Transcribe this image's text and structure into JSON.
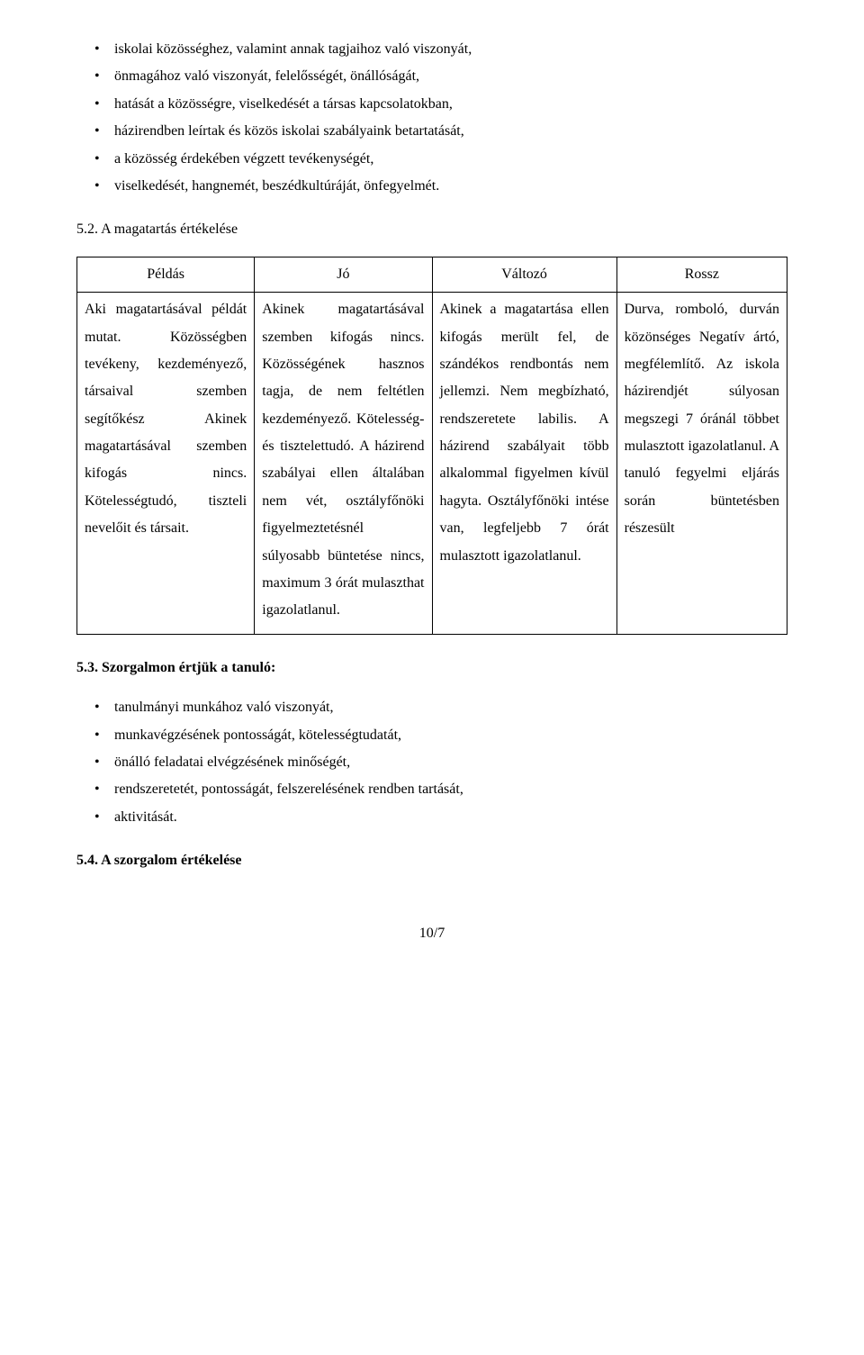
{
  "bullets_top": [
    "iskolai közösséghez, valamint annak tagjaihoz való viszonyát,",
    "önmagához való viszonyát, felelősségét, önállóságát,",
    "hatását a közösségre, viselkedését a társas kapcsolatokban,",
    "házirendben leírtak és közös iskolai szabályaink betartatását,",
    "a közösség érdekében végzett tevékenységét,",
    "viselkedését, hangnemét, beszédkultúráját, önfegyelmét."
  ],
  "heading_52": "5.2. A magatartás értékelése",
  "table": {
    "headers": [
      "Példás",
      "Jó",
      "Változó",
      "Rossz"
    ],
    "col_widths": [
      "25%",
      "25%",
      "26%",
      "24%"
    ],
    "cells": [
      "Aki magatartásával példát mutat. Közösségben tevékeny, kezdeményező, társaival szemben segítőkész Akinek magatartásával szemben kifogás nincs. Kötelességtudó, tiszteli nevelőit és társait.",
      "Akinek magatartásával szemben kifogás nincs. Közösségének hasznos tagja, de nem feltétlen kezdeményező. Kötelesség- és tisztelettudó. A házirend szabályai ellen általában nem vét, osztályfőnöki figyelmeztetésnél súlyosabb büntetése nincs, maximum 3 órát mulaszthat igazolatlanul.",
      "Akinek a magatartása ellen kifogás merült fel, de szándékos rendbontás nem jellemzi. Nem megbízható, rendszeretete labilis. A házirend szabályait több alkalommal figyelmen kívül hagyta. Osztályfőnöki intése van, legfeljebb 7 órát mulasztott igazolatlanul.",
      "Durva, romboló, durván közönséges Negatív ártó, megfélemlítő. Az iskola házirendjét súlyosan megszegi 7 óránál többet mulasztott igazolatlanul. A tanuló fegyelmi eljárás során büntetésben részesült"
    ]
  },
  "heading_53": "5.3. Szorgalmon értjük a tanuló:",
  "bullets_53": [
    "tanulmányi munkához való viszonyát,",
    "munkavégzésének pontosságát, kötelességtudatát,",
    "önálló feladatai elvégzésének minőségét,",
    "rendszeretetét, pontosságát, felszerelésének rendben tartását,",
    " aktivitását."
  ],
  "heading_54": "5.4. A szorgalom értékelése",
  "page_number": "10/7"
}
